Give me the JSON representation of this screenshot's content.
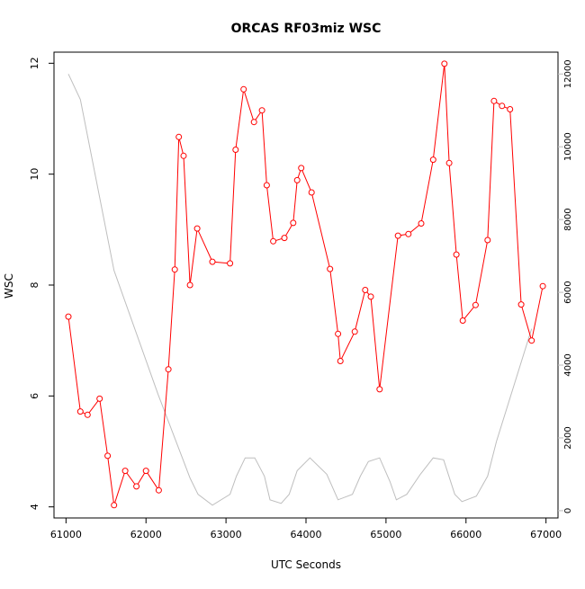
{
  "chart_data": {
    "type": "line",
    "title": "ORCAS RF03miz WSC",
    "xlabel": "UTC Seconds",
    "ylabel": "WSC",
    "xlim": [
      60850,
      67150
    ],
    "ylim": [
      3.8,
      12.2
    ],
    "y2lim": [
      -200,
      12600
    ],
    "xticks": [
      61000,
      62000,
      63000,
      64000,
      65000,
      66000,
      67000
    ],
    "yticks": [
      4,
      6,
      8,
      10,
      12
    ],
    "y2ticks": [
      0,
      2000,
      4000,
      6000,
      8000,
      10000,
      12000
    ],
    "grid": false,
    "series": [
      {
        "axis": "left",
        "color": "#ff0000",
        "marker": "open-circle",
        "x": [
          61030,
          61180,
          61270,
          61420,
          61520,
          61600,
          61740,
          61880,
          62000,
          62160,
          62280,
          62360,
          62410,
          62470,
          62550,
          62640,
          62830,
          63050,
          63120,
          63220,
          63350,
          63450,
          63510,
          63590,
          63730,
          63840,
          63890,
          63940,
          64070,
          64300,
          64400,
          64430,
          64610,
          64740,
          64810,
          64920,
          65150,
          65280,
          65440,
          65590,
          65730,
          65790,
          65880,
          65960,
          66120,
          66270,
          66350,
          66450,
          66550,
          66690,
          66820,
          66960
        ],
        "values": [
          7.43,
          5.72,
          5.66,
          5.95,
          4.92,
          4.03,
          4.65,
          4.37,
          4.65,
          4.3,
          6.48,
          8.28,
          10.67,
          10.33,
          8.0,
          9.02,
          8.42,
          8.39,
          10.44,
          11.53,
          10.94,
          11.15,
          9.8,
          8.79,
          8.85,
          9.12,
          9.89,
          10.11,
          9.67,
          8.29,
          7.12,
          6.63,
          7.16,
          7.91,
          7.79,
          6.12,
          8.89,
          8.92,
          9.11,
          10.26,
          11.99,
          10.2,
          8.55,
          7.36,
          7.64,
          8.81,
          11.32,
          11.23,
          11.17,
          7.65,
          7.0,
          7.98
        ]
      },
      {
        "axis": "right",
        "color": "#bebebe",
        "marker": "none",
        "x": [
          61030,
          61180,
          61600,
          62150,
          62550,
          62650,
          62830,
          63050,
          63130,
          63240,
          63360,
          63480,
          63550,
          63690,
          63790,
          63890,
          64050,
          64260,
          64400,
          64580,
          64680,
          64780,
          64920,
          65050,
          65130,
          65260,
          65430,
          65590,
          65720,
          65860,
          65950,
          66130,
          66270,
          66380,
          66820
        ],
        "values": [
          12000,
          11300,
          6600,
          3200,
          900,
          450,
          150,
          450,
          950,
          1450,
          1450,
          950,
          300,
          200,
          450,
          1100,
          1450,
          1000,
          300,
          450,
          950,
          1350,
          1450,
          800,
          300,
          450,
          1000,
          1450,
          1400,
          450,
          250,
          400,
          950,
          1900,
          5000
        ]
      }
    ]
  }
}
